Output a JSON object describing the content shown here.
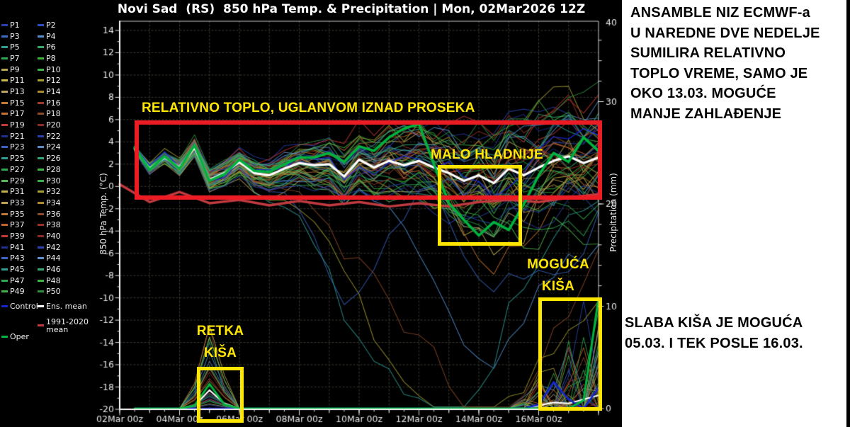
{
  "title": "Novi Sad  (RS)  850 hPa Temp. & Precipitation | Mon, 02Mar2026 12Z",
  "legend": {
    "member_labels": [
      "P1",
      "P2",
      "P3",
      "P4",
      "P5",
      "P6",
      "P7",
      "P8",
      "P9",
      "P10",
      "P11",
      "P12",
      "P13",
      "P14",
      "P15",
      "P16",
      "P17",
      "P18",
      "P19",
      "P20",
      "P21",
      "P22",
      "P23",
      "P24",
      "P25",
      "P26",
      "P27",
      "P28",
      "P29",
      "P30",
      "P31",
      "P32",
      "P33",
      "P34",
      "P35",
      "P36",
      "P37",
      "P38",
      "P39",
      "P40",
      "P41",
      "P42",
      "P43",
      "P44",
      "P45",
      "P46",
      "P47",
      "P48",
      "P49",
      "P50"
    ],
    "member_colors": [
      "#2a3faa",
      "#2c4fc0",
      "#3a6fc8",
      "#5590d0",
      "#2f9e8f",
      "#35a86a",
      "#2ea84e",
      "#3fb53f",
      "#b7a24f",
      "#3db54a",
      "#c9b84a",
      "#a8a032",
      "#bfa35e",
      "#b08a2e",
      "#c47a35",
      "#9e3a2a",
      "#c8722f",
      "#8f4a2a",
      "#c23b34",
      "#8f2a26",
      "#20308f",
      "#2a3fa8",
      "#3a62c2",
      "#5b8cc8",
      "#2f9e96",
      "#35a878",
      "#2ea852",
      "#3fb542",
      "#52bb52",
      "#38b04a",
      "#c2b14e",
      "#a8a038",
      "#bfa055",
      "#ad8a30",
      "#c47838",
      "#8f4a2c",
      "#c4622f",
      "#9c3226",
      "#c23834",
      "#8a2a24",
      "#20308f",
      "#2c46b0",
      "#3a66c4",
      "#5b90cc",
      "#2f9e90",
      "#38aa72",
      "#2ea84e",
      "#3fb540",
      "#44b148",
      "#2d8f3f"
    ],
    "control": {
      "label": "Control",
      "color": "#1525cc"
    },
    "ens_mean": {
      "label": "Ens. mean",
      "color": "#ffffff"
    },
    "clim": {
      "label": "1991-2020 mean",
      "color": "#c13a3f"
    },
    "oper": {
      "label": "Oper",
      "color": "#00b33e"
    }
  },
  "annotations": {
    "warm_label": "RELATIVNO TOPLO, UGLANVOM IZNAD PROSEKA",
    "cooler_label": "MALO HLADNIJE",
    "possible_rain_label": "MOGUĆA\nKIŠA",
    "rare_rain_label": "RETKA\nKIŠA",
    "box_red": "#ed1c24",
    "box_yellow": "#ffe600"
  },
  "side_panel": {
    "top_text": "ANSAMBLE NIZ ECMWF-a\nU NAREDNE DVE NEDELJE\nSUMILIRA RELATIVNO\nTOPLO VREME, SAMO JE\nOKO 13.03. MOGUĆE\nMANJE ZAHLAĐENJE",
    "bottom_text": "SLABA KIŠA JE MOGUĆA\n05.03. I TEK POSLE 16.03."
  },
  "chart_data": {
    "type": "line",
    "title": "Novi Sad (RS) 850 hPa Temp. & Precipitation, ECMWF ensemble, run Mon 02Mar2026 12Z",
    "x_axis": {
      "labels": [
        "02Mar 00z",
        "04Mar 00z",
        "06Mar 00z",
        "08Mar 00z",
        "10Mar 00z",
        "12Mar 00z",
        "14Mar 00z",
        "16Mar 00z"
      ],
      "start_day": 0,
      "end_day": 16,
      "label_interval_days": 2,
      "grid": "daily-dashed"
    },
    "y_left": {
      "label": "850 hPa Temp. (°C)",
      "min": -20,
      "max": 14,
      "ticks": [
        14,
        12,
        10,
        8,
        6,
        4,
        2,
        0,
        -2,
        -4,
        -6,
        -8,
        -10,
        -12,
        -14,
        -16,
        -18,
        -20
      ]
    },
    "y_right": {
      "label": "Precipitation (mm)",
      "min": 0,
      "max": 40,
      "ticks": [
        0,
        10,
        20,
        30,
        40
      ]
    },
    "t_start_day": 0.5,
    "t_step_days": 0.5,
    "series": {
      "ens_mean_temp": [
        3.4,
        1.6,
        2.6,
        1.7,
        3.5,
        0.6,
        1.2,
        2.2,
        1.2,
        1.0,
        1.6,
        2.1,
        1.9,
        2.0,
        0.9,
        2.4,
        1.7,
        2.3,
        1.9,
        2.3,
        1.7,
        1.2,
        0.5,
        1.0,
        0.3,
        1.6,
        1.0,
        1.7,
        2.3,
        2.7,
        2.1,
        2.6
      ],
      "oper_temp": [
        3.5,
        1.5,
        2.7,
        1.6,
        3.7,
        0.5,
        1.1,
        2.4,
        1.4,
        1.3,
        2.0,
        2.6,
        2.6,
        3.0,
        2.2,
        3.6,
        3.2,
        4.4,
        5.2,
        5.6,
        2.0,
        -1.5,
        -3.0,
        -4.4,
        -3.2,
        -3.9,
        -1.6,
        1.0,
        3.0,
        2.2,
        4.4,
        3.2
      ],
      "clim_mean_temp_daily": [
        0.2,
        -1.4,
        -0.5,
        -1.5,
        -1.2,
        -1.7,
        -1.3,
        -1.7,
        -1.4,
        -1.8,
        -1.5,
        -1.8,
        -1.4,
        -1.2,
        -1.4,
        -1.0,
        -0.7
      ],
      "ens_mean_precip": [
        0,
        0,
        0,
        0,
        0.3,
        1.8,
        0.5,
        0,
        0,
        0,
        0,
        0,
        0,
        0,
        0,
        0,
        0,
        0,
        0,
        0,
        0,
        0,
        0,
        0,
        0,
        0,
        0,
        0.3,
        0.6,
        0.5,
        0.9,
        1.3
      ],
      "oper_precip": [
        0,
        0,
        0,
        0,
        0.3,
        2.4,
        0.4,
        0,
        0,
        0,
        0,
        0,
        0,
        0,
        0,
        0,
        0,
        0,
        0,
        0,
        0,
        0,
        0,
        0,
        0,
        0,
        0,
        0,
        0,
        0,
        0.8,
        10.8
      ],
      "control_precip": [
        0,
        0,
        0,
        0,
        0,
        0,
        0,
        0,
        0,
        0,
        0,
        0,
        0,
        0,
        0,
        0,
        0,
        0,
        0,
        0,
        0,
        0,
        0,
        0,
        0,
        0,
        0,
        0.4,
        2.6,
        0.9,
        0,
        2.0
      ]
    },
    "ensemble": {
      "count": 50,
      "seed": 1000,
      "spread_days": [
        0.5,
        2,
        4,
        6,
        8,
        10,
        12,
        14,
        16
      ],
      "spread_values": [
        0.15,
        0.55,
        1.0,
        1.7,
        2.5,
        3.5,
        4.5,
        5.1,
        5.5
      ],
      "cold_divers": [
        {
          "member": 23,
          "center": 7.6,
          "depth": 10,
          "width": 1.0
        },
        {
          "member": 25,
          "center": 10.2,
          "depth": 23,
          "width": 2.6
        },
        {
          "member": 12,
          "center": 11.6,
          "depth": 22,
          "width": 3.0
        },
        {
          "member": 36,
          "center": 12.6,
          "depth": 23,
          "width": 3.2
        },
        {
          "member": 4,
          "center": 12.2,
          "depth": 11,
          "width": 1.8
        },
        {
          "member": 17,
          "center": 13.2,
          "depth": 10,
          "width": 1.6
        },
        {
          "member": 31,
          "center": 12.4,
          "depth": 8,
          "width": 1.5
        },
        {
          "member": 43,
          "center": 14.0,
          "depth": 9,
          "width": 1.8
        }
      ],
      "warm_spikes": [
        {
          "member": 26,
          "center": 15.3,
          "amp": 7,
          "width": 1.0
        }
      ],
      "forced_precip_spikes": [
        {
          "member": 42,
          "day": 15.5,
          "amp": 10.5
        },
        {
          "member": 47,
          "day": 16,
          "amp": 9.5
        },
        {
          "member": 24,
          "day": 15,
          "amp": 6.0
        },
        {
          "member": 36,
          "day": 15.5,
          "amp": 5.0
        },
        {
          "member": 18,
          "day": 3,
          "amp": 8.0
        },
        {
          "member": 25,
          "day": 3,
          "amp": 6.5
        }
      ]
    }
  }
}
